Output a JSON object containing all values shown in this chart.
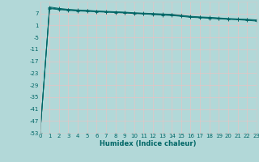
{
  "xlabel": "Humidex (Indice chaleur)",
  "ylabel": "",
  "background_color": "#b2d8d8",
  "grid_color": "#e0f0f0",
  "line_color": "#006666",
  "xlim": [
    0,
    23
  ],
  "ylim": [
    -53,
    13
  ],
  "yticks": [
    7,
    1,
    -5,
    -11,
    -17,
    -23,
    -29,
    -35,
    -41,
    -47,
    -53
  ],
  "xticks": [
    0,
    1,
    2,
    3,
    4,
    5,
    6,
    7,
    8,
    9,
    10,
    11,
    12,
    13,
    14,
    15,
    16,
    17,
    18,
    19,
    20,
    21,
    22,
    23
  ],
  "x_data": [
    0,
    1,
    2,
    3,
    4,
    5,
    6,
    7,
    8,
    9,
    10,
    11,
    12,
    13,
    14,
    15,
    16,
    17,
    18,
    19,
    20,
    21,
    22,
    23
  ],
  "lines": [
    [
      -53,
      9.5,
      9.0,
      8.6,
      8.3,
      8.1,
      7.9,
      7.7,
      7.5,
      7.3,
      7.0,
      6.8,
      6.5,
      6.2,
      6.0,
      5.6,
      5.1,
      4.9,
      4.6,
      4.3,
      4.1,
      3.9,
      3.6,
      3.2
    ],
    [
      -53,
      9.8,
      9.3,
      8.9,
      8.6,
      8.4,
      8.1,
      7.9,
      7.7,
      7.5,
      7.2,
      7.0,
      6.8,
      6.5,
      6.3,
      5.9,
      5.4,
      5.1,
      4.9,
      4.6,
      4.3,
      4.1,
      3.9,
      3.5
    ],
    [
      -53,
      10.3,
      9.6,
      9.1,
      8.8,
      8.6,
      8.3,
      8.1,
      7.9,
      7.7,
      7.4,
      7.2,
      7.0,
      6.8,
      6.6,
      6.1,
      5.6,
      5.3,
      5.1,
      4.8,
      4.5,
      4.3,
      4.1,
      3.8
    ]
  ],
  "marker": "+",
  "markersize": 2.5,
  "linewidth": 0.7,
  "tick_fontsize": 5,
  "xlabel_fontsize": 6
}
